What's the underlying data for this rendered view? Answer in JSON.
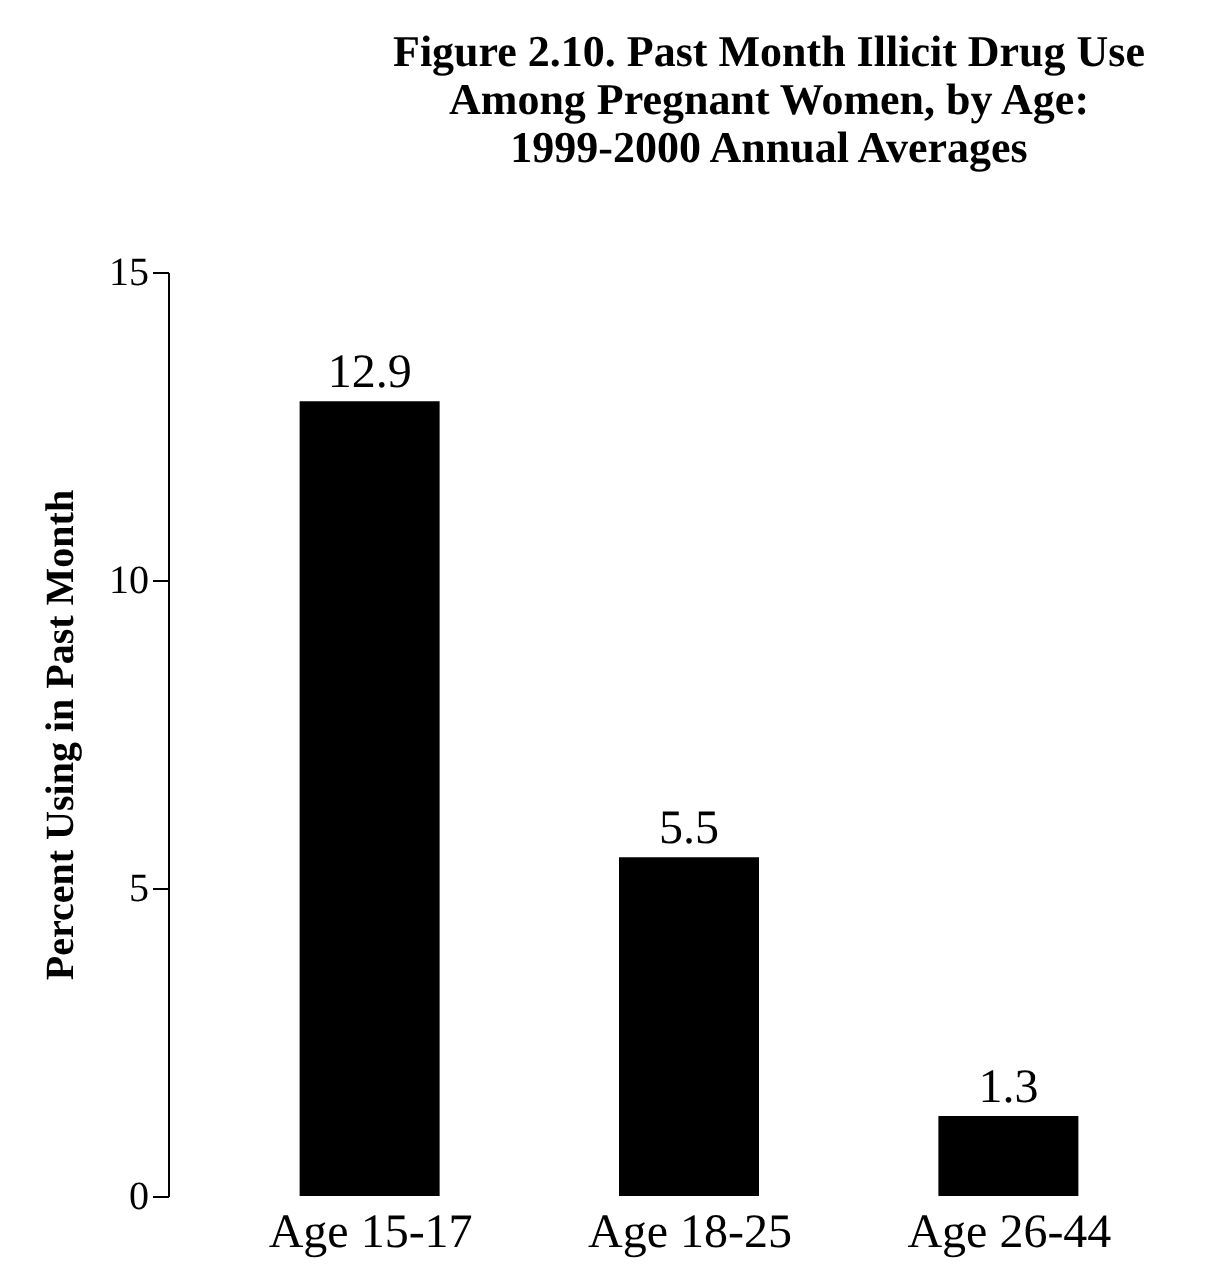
{
  "chart_data": {
    "type": "bar",
    "title": [
      "Figure 2.10.  Past Month Illicit Drug Use",
      "Among Pregnant Women, by Age:",
      "1999-2000 Annual Averages"
    ],
    "ylabel": "Percent Using in Past Month",
    "categories": [
      "Age 15-17",
      "Age 18-25",
      "Age 26-44"
    ],
    "values": [
      12.9,
      5.5,
      1.3
    ],
    "color": "#000000",
    "ylim": [
      0,
      15
    ],
    "yticks": [
      0,
      5,
      10,
      15
    ],
    "grid": false,
    "data_labels": true
  }
}
